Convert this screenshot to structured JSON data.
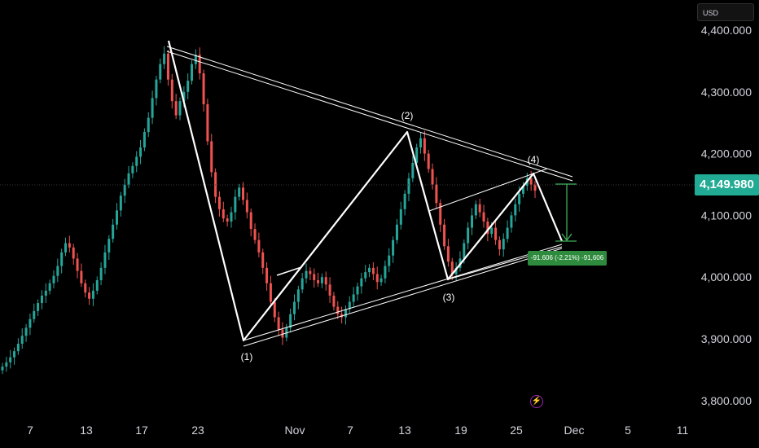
{
  "currency": "USD",
  "current_price_label": "4,149.980",
  "measure_label": "-91.606 (-2.21%) -91,606",
  "flash_icon": "lightning-icon",
  "colors": {
    "background": "#000000",
    "up": "#26a69a",
    "down": "#ef5350",
    "price_tag": "#22ab94",
    "measure": "#2e8b3d",
    "drawing": "#ffffff"
  },
  "chart_data": {
    "type": "candlestick",
    "title": "",
    "xlabel": "",
    "ylabel": "",
    "y_ticks": [
      "4,400.000",
      "4,300.000",
      "4,200.000",
      "4,100.000",
      "4,000.000",
      "3,900.000",
      "3,800.000"
    ],
    "x_ticks": [
      "7",
      "13",
      "17",
      "23",
      "Nov",
      "7",
      "13",
      "19",
      "25",
      "Dec",
      "5",
      "11"
    ],
    "ylim": [
      3770,
      4430
    ],
    "current_price": 4149.98,
    "grid": false,
    "wave_points": [
      {
        "label": "",
        "price": 4380
      },
      {
        "label": "(1)",
        "price": 3900
      },
      {
        "label": "(2)",
        "price": 4237
      },
      {
        "label": "(3)",
        "price": 3997
      },
      {
        "label": "(4)",
        "price": 4163
      }
    ],
    "projection_target": 4058,
    "measure": {
      "change": -91.606,
      "percent": -2.21
    },
    "candles_close": [
      3855,
      3862,
      3870,
      3880,
      3892,
      3905,
      3918,
      3932,
      3945,
      3958,
      3970,
      3978,
      3990,
      4002,
      4018,
      4040,
      4055,
      4048,
      4030,
      4010,
      3990,
      3975,
      3965,
      3978,
      3995,
      4015,
      4040,
      4062,
      4085,
      4108,
      4132,
      4150,
      4168,
      4180,
      4195,
      4210,
      4235,
      4258,
      4290,
      4320,
      4345,
      4362,
      4320,
      4285,
      4262,
      4285,
      4300,
      4318,
      4345,
      4360,
      4330,
      4280,
      4220,
      4170,
      4130,
      4110,
      4095,
      4090,
      4105,
      4130,
      4145,
      4125,
      4105,
      4078,
      4060,
      4040,
      4015,
      3990,
      3960,
      3935,
      3915,
      3902,
      3918,
      3940,
      3960,
      3980,
      3998,
      4010,
      4005,
      3995,
      3990,
      4000,
      3988,
      3970,
      3952,
      3940,
      3935,
      3948,
      3960,
      3972,
      3985,
      3998,
      4008,
      4015,
      4005,
      3992,
      3998,
      4018,
      4035,
      4060,
      4085,
      4110,
      4135,
      4160,
      4185,
      4210,
      4225,
      4200,
      4175,
      4150,
      4120,
      4085,
      4050,
      4025,
      4005,
      4015,
      4030,
      4055,
      4080,
      4100,
      4118,
      4105,
      4090,
      4070,
      4080,
      4060,
      4045,
      4062,
      4080,
      4100,
      4118,
      4135,
      4148,
      4160,
      4150,
      4140
    ]
  }
}
